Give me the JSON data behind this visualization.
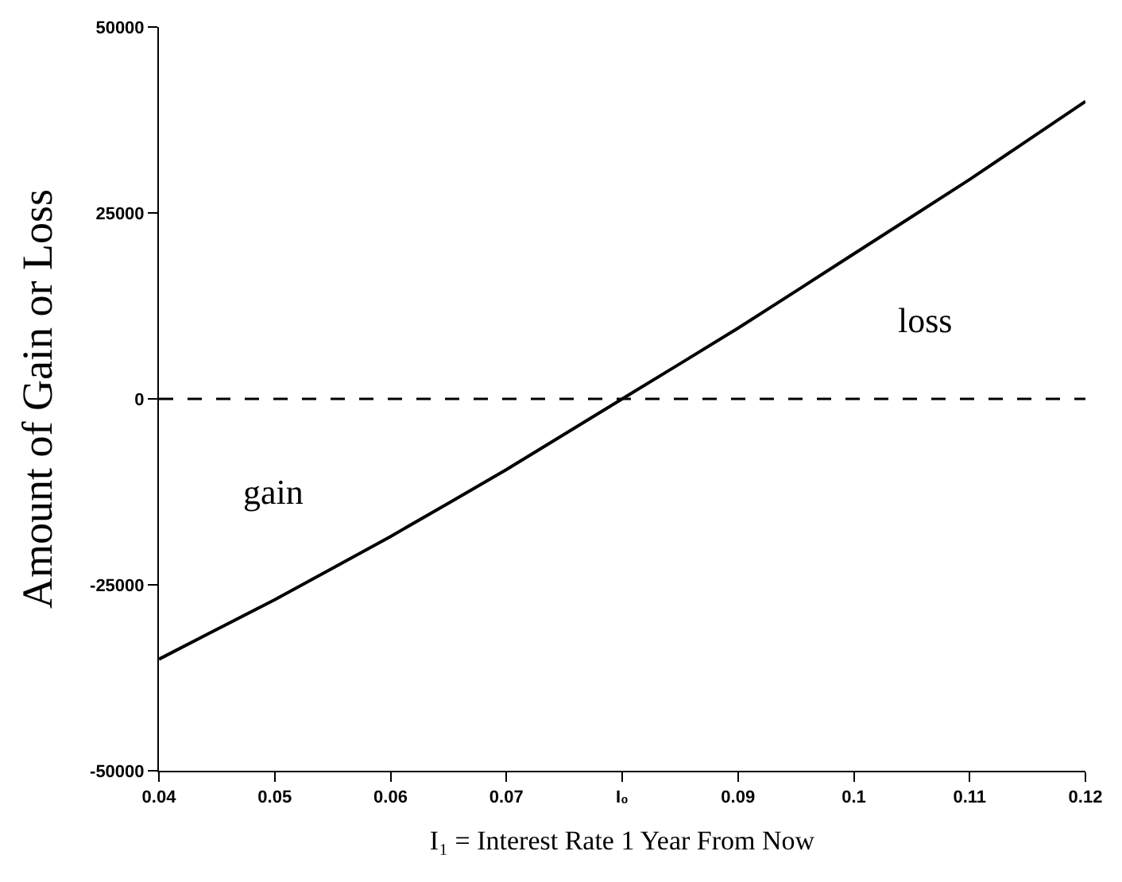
{
  "chart_data": {
    "type": "line",
    "xlabel": "I₁ = Interest Rate 1 Year From Now",
    "ylabel": "Amount of Gain or Loss",
    "x": [
      0.04,
      0.05,
      0.06,
      0.07,
      0.08,
      0.09,
      0.1,
      0.11,
      0.12
    ],
    "series": [
      {
        "color": "#000000",
        "values": [
          -35000,
          -27000,
          -18500,
          -9500,
          0,
          9500,
          19500,
          29500,
          40000
        ]
      }
    ],
    "xlim": [
      0.04,
      0.12
    ],
    "ylim": [
      -50000,
      50000
    ],
    "xticks": [
      0.04,
      0.05,
      0.06,
      0.07,
      {
        "value": 0.08,
        "label": "I₀"
      },
      0.09,
      0.1,
      0.11,
      0.12
    ],
    "yticks": [
      -50000,
      -25000,
      0,
      25000,
      50000
    ],
    "ref_lines": [
      {
        "axis": "y",
        "value": 0,
        "line_style": "dashed",
        "color": "#000000"
      }
    ],
    "annotations": [
      "gain",
      "loss"
    ],
    "marker": "none",
    "line_style": "solid"
  }
}
